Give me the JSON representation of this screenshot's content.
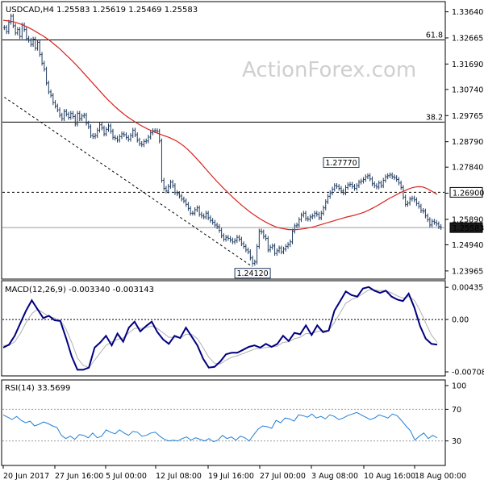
{
  "chart_data": [
    {
      "type": "candlestick",
      "title": "USDCAD,H4  1.25583  1.25619  1.25469  1.25583",
      "watermark": "ActionForex.com",
      "ylim": [
        1.2372,
        1.3396
      ],
      "y_ticks": [
        "1.33640",
        "1.32665",
        "1.31690",
        "1.30740",
        "1.29765",
        "1.28790",
        "1.27840",
        "1.26865",
        "1.25890",
        "1.24940",
        "1.23965"
      ],
      "y_tick_values": [
        1.3364,
        1.32665,
        1.3169,
        1.3074,
        1.29765,
        1.2879,
        1.2784,
        1.26865,
        1.2589,
        1.2494,
        1.23965
      ],
      "x_ticks": [
        "20 Jun 2017",
        "27 Jun 16:00",
        "5 Jul 00:00",
        "12 Jul 08:00",
        "19 Jul 16:00",
        "27 Jul 00:00",
        "3 Aug 08:00",
        "10 Aug 16:00",
        "18 Aug 00:00"
      ],
      "close": [
        1.3305,
        1.329,
        1.3325,
        1.3348,
        1.3312,
        1.3285,
        1.3298,
        1.3272,
        1.3315,
        1.3298,
        1.3265,
        1.3258,
        1.3242,
        1.3262,
        1.3228,
        1.325,
        1.3205,
        1.3172,
        1.315,
        1.3098,
        1.3065,
        1.3052,
        1.3025,
        1.3012,
        1.2998,
        1.2978,
        1.2965,
        1.2992,
        1.2982,
        1.297,
        1.2985,
        1.2973,
        1.2945,
        1.2985,
        1.2965,
        1.2975,
        1.2978,
        1.2948,
        1.2935,
        1.2902,
        1.2898,
        1.2902,
        1.2922,
        1.2942,
        1.293,
        1.2908,
        1.2925,
        1.2938,
        1.2918,
        1.2895,
        1.2892,
        1.2885,
        1.2898,
        1.2908,
        1.2905,
        1.2895,
        1.2888,
        1.2902,
        1.2922,
        1.2905,
        1.2885,
        1.2872,
        1.2868,
        1.288,
        1.2882,
        1.2896,
        1.2912,
        1.292,
        1.292,
        1.2918,
        1.2882,
        1.2735,
        1.2705,
        1.2695,
        1.2712,
        1.2728,
        1.2715,
        1.2689,
        1.2685,
        1.2676,
        1.2665,
        1.2658,
        1.2645,
        1.263,
        1.2612,
        1.2612,
        1.2625,
        1.2632,
        1.2608,
        1.2602,
        1.2598,
        1.2612,
        1.2595,
        1.2585,
        1.2578,
        1.2568,
        1.2562,
        1.2548,
        1.2528,
        1.2515,
        1.2522,
        1.2518,
        1.2512,
        1.2505,
        1.251,
        1.2522,
        1.2515,
        1.2498,
        1.2488,
        1.2475,
        1.2468,
        1.2445,
        1.2425,
        1.243,
        1.2488,
        1.2545,
        1.2542,
        1.2525,
        1.2518,
        1.2475,
        1.2485,
        1.249,
        1.2462,
        1.2472,
        1.2482,
        1.2468,
        1.2478,
        1.2488,
        1.2495,
        1.2505,
        1.2545,
        1.2565,
        1.2568,
        1.2588,
        1.2605,
        1.2612,
        1.2592,
        1.259,
        1.2598,
        1.2602,
        1.2612,
        1.2608,
        1.2595,
        1.2612,
        1.2632,
        1.2655,
        1.2675,
        1.2688,
        1.2702,
        1.2715,
        1.2712,
        1.2705,
        1.2695,
        1.2688,
        1.2708,
        1.2718,
        1.272,
        1.2712,
        1.2705,
        1.2715,
        1.2728,
        1.2732,
        1.2738,
        1.2748,
        1.2752,
        1.274,
        1.2722,
        1.2715,
        1.271,
        1.2725,
        1.2715,
        1.2735,
        1.2748,
        1.2752,
        1.2755,
        1.2748,
        1.2745,
        1.2738,
        1.2725,
        1.2708,
        1.2672,
        1.2645,
        1.265,
        1.2665,
        1.2668,
        1.2662,
        1.2648,
        1.2638,
        1.2622,
        1.262,
        1.2602,
        1.2588,
        1.2568,
        1.2582,
        1.2578,
        1.2572,
        1.2562,
        1.2559
      ],
      "sma": [
        1.3332,
        1.3331,
        1.3329,
        1.3326,
        1.3322,
        1.3317,
        1.3311,
        1.3305,
        1.3298,
        1.329,
        1.3282,
        1.3274,
        1.3265,
        1.3255,
        1.3244,
        1.3233,
        1.3221,
        1.3208,
        1.3195,
        1.3182,
        1.3168,
        1.3154,
        1.3139,
        1.3124,
        1.3109,
        1.3094,
        1.3079,
        1.3064,
        1.3049,
        1.3035,
        1.3022,
        1.3009,
        1.2997,
        1.2986,
        1.2975,
        1.2966,
        1.2957,
        1.2948,
        1.294,
        1.2933,
        1.2926,
        1.292,
        1.2914,
        1.2909,
        1.2904,
        1.2899,
        1.2894,
        1.2888,
        1.2881,
        1.2872,
        1.2862,
        1.285,
        1.2837,
        1.2823,
        1.2808,
        1.2793,
        1.2777,
        1.2762,
        1.2747,
        1.2732,
        1.2718,
        1.2704,
        1.2691,
        1.2678,
        1.2665,
        1.2653,
        1.2641,
        1.263,
        1.2619,
        1.2609,
        1.26,
        1.2591,
        1.2583,
        1.2576,
        1.2569,
        1.2563,
        1.2558,
        1.2555,
        1.2553,
        1.2551,
        1.2551,
        1.2551,
        1.2552,
        1.2554,
        1.2556,
        1.2559,
        1.2562,
        1.2566,
        1.257,
        1.2574,
        1.2578,
        1.2582,
        1.2586,
        1.259,
        1.2594,
        1.2598,
        1.2601,
        1.2604,
        1.2608,
        1.2612,
        1.2617,
        1.2623,
        1.263,
        1.2637,
        1.2645,
        1.2653,
        1.2661,
        1.2669,
        1.2676,
        1.2683,
        1.269,
        1.2696,
        1.2702,
        1.2707,
        1.271,
        1.2711,
        1.271,
        1.2705,
        1.2698,
        1.269,
        1.2682
      ],
      "levels": [
        {
          "value": 1.3259,
          "label": "61.8",
          "style": "solid"
        },
        {
          "value": 1.2952,
          "label": "38.2",
          "style": "solid"
        },
        {
          "value": 1.269,
          "label": "1.26900",
          "style": "dashed",
          "boxed": true
        },
        {
          "value": 1.25583,
          "label": "1.25583",
          "style": "solid-light",
          "boxed": true,
          "dark": true
        }
      ],
      "annotations": [
        {
          "label": "1.27770",
          "value": 1.2777,
          "at_bar": 152
        },
        {
          "label": "1.24120",
          "value": 1.2412,
          "at_bar": 112
        }
      ],
      "trendline": {
        "from_bar": 0,
        "from_value": 1.3045,
        "to_bar": 112,
        "to_value": 1.2412,
        "style": "dashed"
      }
    },
    {
      "type": "line",
      "title": "MACD(12,26,9) -0.003340 -0.003143",
      "ylim": [
        -0.0073,
        0.0047
      ],
      "y_ticks": [
        "0.004357",
        "0.00",
        "-0.007081"
      ],
      "y_tick_values": [
        0.004357,
        0.0,
        -0.007081
      ],
      "zero_line": 0.0,
      "series": [
        {
          "name": "MACD",
          "color": "#000080",
          "values": [
            -0.0038,
            -0.0034,
            -0.0022,
            -0.0005,
            0.0012,
            0.0026,
            0.0014,
            0.0002,
            0.0005,
            -0.0001,
            -0.0002,
            -0.0025,
            -0.005,
            -0.0068,
            -0.0068,
            -0.0065,
            -0.0038,
            -0.0031,
            -0.0022,
            -0.0035,
            -0.0019,
            -0.003,
            -0.0011,
            -0.0003,
            -0.0016,
            -0.0009,
            -0.0003,
            -0.0017,
            -0.0027,
            -0.0033,
            -0.0022,
            -0.0025,
            -0.0011,
            -0.0023,
            -0.0035,
            -0.0053,
            -0.0065,
            -0.0064,
            -0.0057,
            -0.0047,
            -0.0045,
            -0.0045,
            -0.0041,
            -0.0037,
            -0.0035,
            -0.0038,
            -0.0033,
            -0.0037,
            -0.0033,
            -0.0022,
            -0.0029,
            -0.0018,
            -0.002,
            -0.0008,
            -0.0021,
            -0.0008,
            -0.0017,
            -0.0015,
            0.0012,
            0.0025,
            0.0038,
            0.0033,
            0.0031,
            0.0042,
            0.0044,
            0.0039,
            0.0036,
            0.0039,
            0.0031,
            0.0027,
            0.0025,
            0.0035,
            0.0016,
            -0.0009,
            -0.0026,
            -0.0033,
            -0.0034
          ]
        },
        {
          "name": "Signal",
          "color": "#b0b0b0",
          "values": [
            -0.0035,
            -0.0035,
            -0.003,
            -0.0019,
            -0.0004,
            0.0008,
            0.0014,
            0.0009,
            0.0004,
            0.0002,
            -0.0001,
            -0.0013,
            -0.0031,
            -0.0052,
            -0.0062,
            -0.0065,
            -0.0055,
            -0.0045,
            -0.0035,
            -0.003,
            -0.0027,
            -0.0025,
            -0.0018,
            -0.0012,
            -0.0012,
            -0.0011,
            -0.0009,
            -0.0012,
            -0.0018,
            -0.0024,
            -0.0024,
            -0.0025,
            -0.002,
            -0.002,
            -0.0026,
            -0.0038,
            -0.0051,
            -0.0059,
            -0.006,
            -0.0055,
            -0.0051,
            -0.0049,
            -0.0046,
            -0.0043,
            -0.004,
            -0.0039,
            -0.0038,
            -0.0037,
            -0.0036,
            -0.0031,
            -0.003,
            -0.0026,
            -0.0024,
            -0.0019,
            -0.0019,
            -0.0016,
            -0.0015,
            -0.0015,
            -0.0004,
            0.0009,
            0.0022,
            0.0027,
            0.003,
            0.0035,
            0.004,
            0.004,
            0.0039,
            0.0039,
            0.0036,
            0.0032,
            0.0029,
            0.0031,
            0.0026,
            0.0012,
            -0.0005,
            -0.0021,
            -0.0031
          ]
        }
      ]
    },
    {
      "type": "line",
      "title": "RSI(14) 33.5699",
      "ylim": [
        0,
        100
      ],
      "y_ticks": [
        "100",
        "70",
        "30",
        "0"
      ],
      "y_tick_values": [
        100,
        70,
        30,
        0
      ],
      "levels": [
        70,
        30
      ],
      "series": [
        {
          "name": "RSI",
          "color": "#1f7fd6",
          "values": [
            63,
            60,
            57,
            61,
            56,
            53,
            55,
            49,
            51,
            54,
            52,
            49,
            47,
            37,
            33,
            36,
            32,
            38,
            37,
            34,
            40,
            34,
            36,
            44,
            41,
            39,
            44,
            40,
            37,
            42,
            41,
            36,
            37,
            40,
            41,
            36,
            32,
            30,
            31,
            30,
            33,
            35,
            31,
            34,
            32,
            30,
            33,
            29,
            31,
            37,
            33,
            35,
            31,
            36,
            34,
            30,
            38,
            45,
            49,
            48,
            46,
            56,
            53,
            59,
            58,
            55,
            63,
            62,
            60,
            64,
            59,
            61,
            58,
            63,
            61,
            57,
            59,
            62,
            64,
            66,
            63,
            60,
            57,
            59,
            63,
            61,
            59,
            64,
            62,
            56,
            49,
            43,
            31,
            36,
            40,
            33,
            37,
            34
          ]
        }
      ]
    }
  ]
}
